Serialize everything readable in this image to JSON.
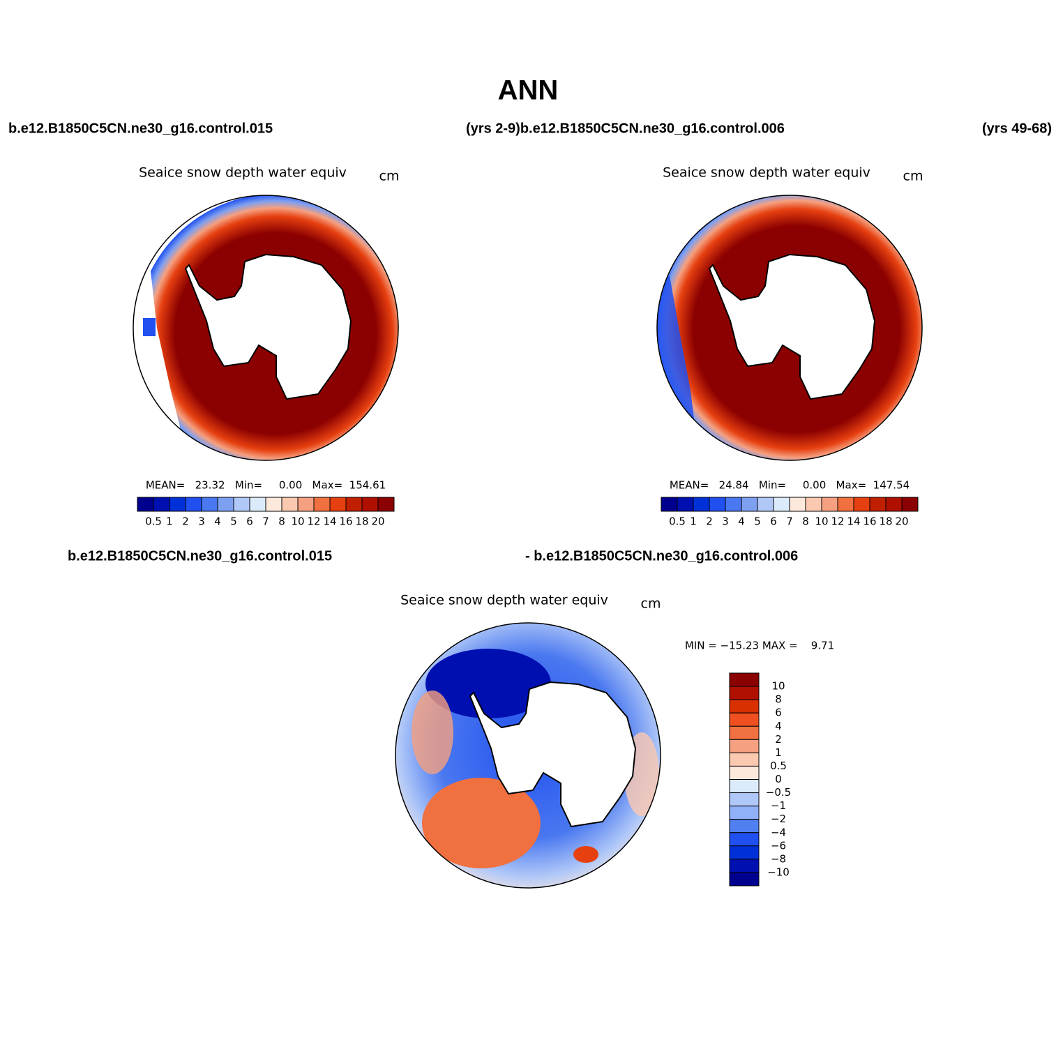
{
  "title": "ANN",
  "header": {
    "left": "b.e12.B1850C5CN.ne30_g16.control.015",
    "middle": "(yrs 2-9)b.e12.B1850C5CN.ne30_g16.control.006",
    "right": "(yrs 49-68)"
  },
  "panels": [
    {
      "title": "Seaice snow depth water equiv",
      "units": "cm",
      "stats": "MEAN=   23.32   Min=     0.00   Max=  154.61",
      "colorbar": {
        "labels": [
          "0.5",
          "1",
          "2",
          "3",
          "4",
          "5",
          "6",
          "7",
          "8",
          "10",
          "12",
          "14",
          "16",
          "18",
          "20"
        ],
        "colors": [
          "#00008f",
          "#0010b0",
          "#0030d8",
          "#2050f0",
          "#4a78f0",
          "#7ea0f0",
          "#b0c8f8",
          "#dcebfc",
          "#fde8dc",
          "#fbc8b0",
          "#f5a080",
          "#f07040",
          "#e64010",
          "#c02000",
          "#b01000",
          "#8b0000"
        ]
      }
    },
    {
      "title": "Seaice snow depth water equiv",
      "units": "cm",
      "stats": "MEAN=   24.84   Min=     0.00   Max=  147.54",
      "colorbar": {
        "labels": [
          "0.5",
          "1",
          "2",
          "3",
          "4",
          "5",
          "6",
          "7",
          "8",
          "10",
          "12",
          "14",
          "16",
          "18",
          "20"
        ],
        "colors": [
          "#00008f",
          "#0010b0",
          "#0030d8",
          "#2050f0",
          "#4a78f0",
          "#7ea0f0",
          "#b0c8f8",
          "#dcebfc",
          "#fde8dc",
          "#fbc8b0",
          "#f5a080",
          "#f07040",
          "#e64010",
          "#c02000",
          "#b01000",
          "#8b0000"
        ]
      }
    }
  ],
  "difference": {
    "case_a": "b.e12.B1850C5CN.ne30_g16.control.015",
    "case_b": "- b.e12.B1850C5CN.ne30_g16.control.006",
    "title": "Seaice snow depth water equiv",
    "units": "cm",
    "stats": "MIN = −15.23 MAX =    9.71",
    "colorbar": {
      "labels": [
        "10",
        "8",
        "6",
        "4",
        "2",
        "1",
        "0.5",
        "0",
        "−0.5",
        "−1",
        "−2",
        "−4",
        "−6",
        "−8",
        "−10"
      ],
      "colors": [
        "#8b0000",
        "#b01000",
        "#d83000",
        "#f05020",
        "#f07040",
        "#f5a080",
        "#fbc8b0",
        "#fde8dc",
        "#dcebfc",
        "#b0c8f8",
        "#90b0f8",
        "#5080f0",
        "#2050f0",
        "#0030d8",
        "#0010b0",
        "#00008f"
      ]
    }
  }
}
